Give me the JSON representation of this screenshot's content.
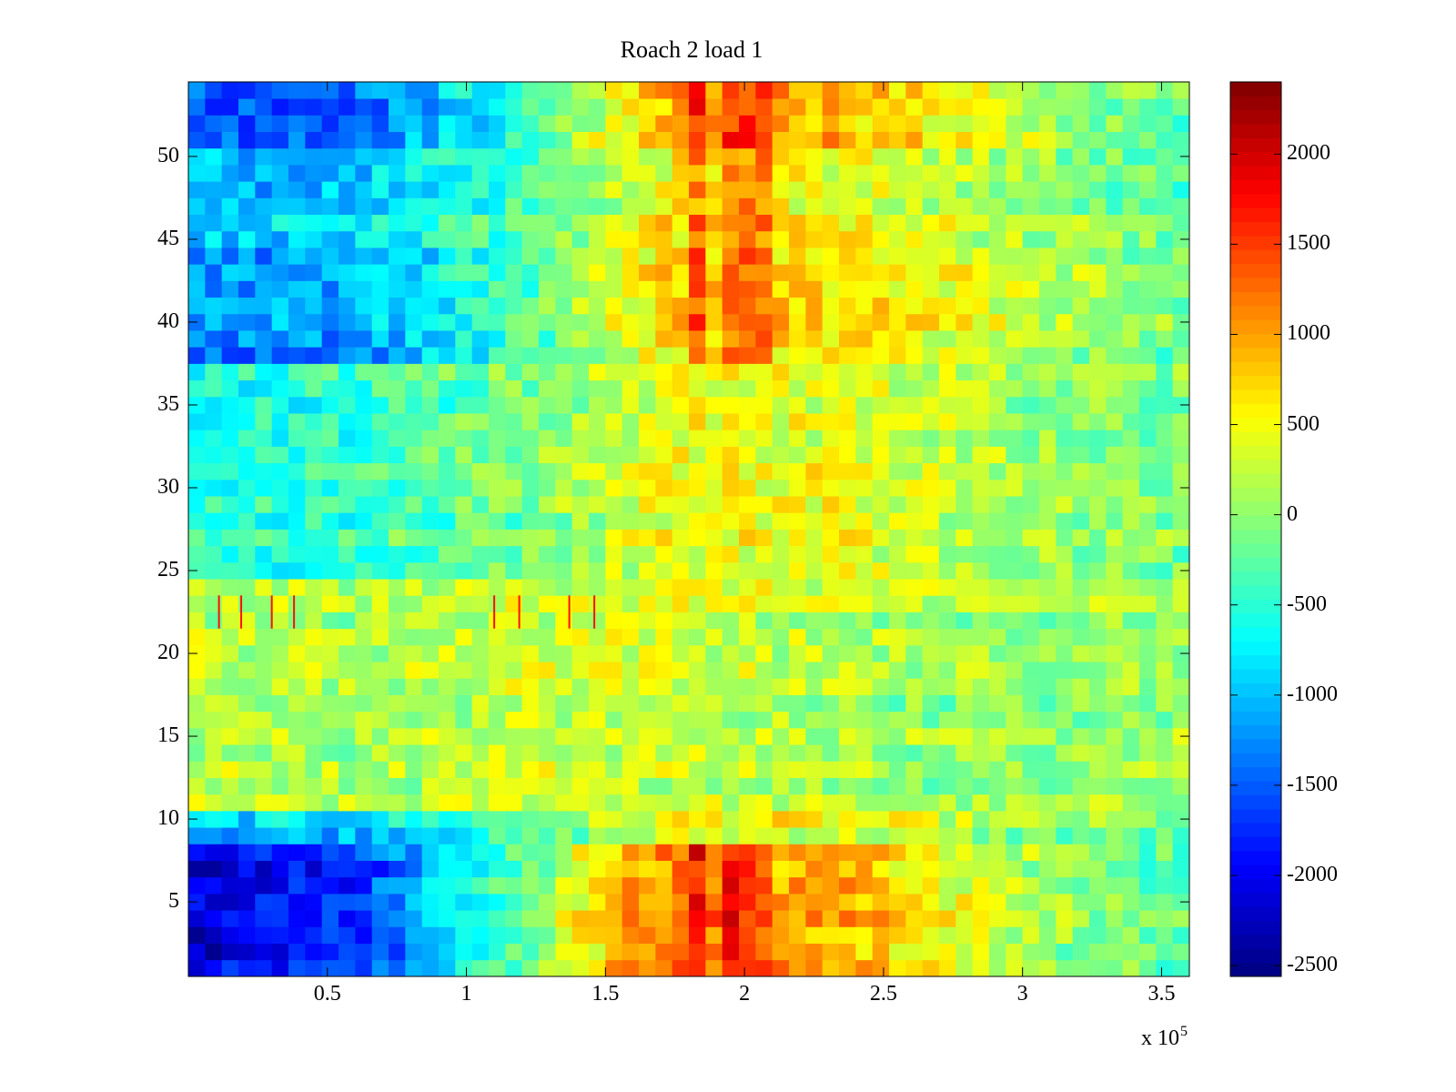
{
  "chart_data": {
    "type": "heatmap",
    "title": "Roach 2 load 1",
    "xlabel": "",
    "ylabel": "",
    "x_multiplier": {
      "base": "x 10",
      "exponent": "5"
    },
    "xlim": [
      0,
      360000
    ],
    "ylim": [
      0.5,
      54.5
    ],
    "x_ticks": [
      {
        "value": 0.5,
        "label": "0.5"
      },
      {
        "value": 1,
        "label": "1"
      },
      {
        "value": 1.5,
        "label": "1.5"
      },
      {
        "value": 2,
        "label": "2"
      },
      {
        "value": 2.5,
        "label": "2.5"
      },
      {
        "value": 3,
        "label": "3"
      },
      {
        "value": 3.5,
        "label": "3.5"
      }
    ],
    "y_ticks": [
      {
        "value": 5,
        "label": "5"
      },
      {
        "value": 10,
        "label": "10"
      },
      {
        "value": 15,
        "label": "15"
      },
      {
        "value": 20,
        "label": "20"
      },
      {
        "value": 25,
        "label": "25"
      },
      {
        "value": 30,
        "label": "30"
      },
      {
        "value": 35,
        "label": "35"
      },
      {
        "value": 40,
        "label": "40"
      },
      {
        "value": 45,
        "label": "45"
      },
      {
        "value": 50,
        "label": "50"
      }
    ],
    "colorbar": {
      "colormap": "jet",
      "clim": [
        -2560,
        2400
      ],
      "ticks": [
        {
          "value": 2000,
          "label": "2000"
        },
        {
          "value": 1500,
          "label": "1500"
        },
        {
          "value": 1000,
          "label": "1000"
        },
        {
          "value": 500,
          "label": "500"
        },
        {
          "value": 0,
          "label": "0"
        },
        {
          "value": -500,
          "label": "-500"
        },
        {
          "value": -1000,
          "label": "-1000"
        },
        {
          "value": -1500,
          "label": "-1500"
        },
        {
          "value": -2000,
          "label": "-2000"
        },
        {
          "value": -2500,
          "label": "-2500"
        }
      ]
    },
    "rows": 54,
    "column_bin_width": 6000,
    "column_profiles": [
      {
        "name": "rows 1-8",
        "x_thousands": [
          0,
          30,
          60,
          90,
          120,
          150,
          180,
          210,
          240,
          270,
          300,
          330,
          360
        ],
        "values": [
          -2100,
          -1900,
          -1700,
          -900,
          -200,
          800,
          1300,
          1000,
          900,
          500,
          200,
          -100,
          -300
        ]
      },
      {
        "name": "rows 9-10",
        "x_thousands": [
          0,
          60,
          120,
          180,
          240,
          300,
          360
        ],
        "values": [
          -1000,
          -900,
          -300,
          500,
          400,
          0,
          -200
        ]
      },
      {
        "name": "rows 11-22",
        "x_thousands": [
          0,
          60,
          120,
          180,
          240,
          300,
          360
        ],
        "values": [
          200,
          100,
          300,
          300,
          100,
          0,
          100
        ]
      },
      {
        "name": "rows 23-24",
        "x_thousands": [
          0,
          60,
          120,
          180,
          240,
          300,
          360
        ],
        "values": [
          100,
          100,
          200,
          400,
          200,
          100,
          0
        ]
      },
      {
        "name": "rows 25-37",
        "x_thousands": [
          0,
          60,
          120,
          180,
          240,
          300,
          360
        ],
        "values": [
          -600,
          -400,
          -100,
          500,
          400,
          100,
          -100
        ]
      },
      {
        "name": "rows 38-44",
        "x_thousands": [
          0,
          60,
          120,
          180,
          240,
          300,
          360
        ],
        "values": [
          -1300,
          -1200,
          -400,
          800,
          600,
          200,
          -200
        ]
      },
      {
        "name": "rows 45-50",
        "x_thousands": [
          0,
          60,
          120,
          180,
          240,
          300,
          360
        ],
        "values": [
          -1000,
          -900,
          -300,
          700,
          500,
          100,
          -200
        ]
      },
      {
        "name": "rows 51-54",
        "x_thousands": [
          0,
          60,
          120,
          180,
          240,
          300,
          360
        ],
        "values": [
          -1600,
          -1500,
          -500,
          1100,
          800,
          200,
          -300
        ]
      }
    ],
    "hot_columns_x_thousands": [
      182,
      198,
      208
    ],
    "spikes": {
      "row": 23,
      "x_thousands": [
        11,
        19,
        30,
        38,
        110,
        119,
        137,
        146
      ],
      "value": 1700
    }
  }
}
